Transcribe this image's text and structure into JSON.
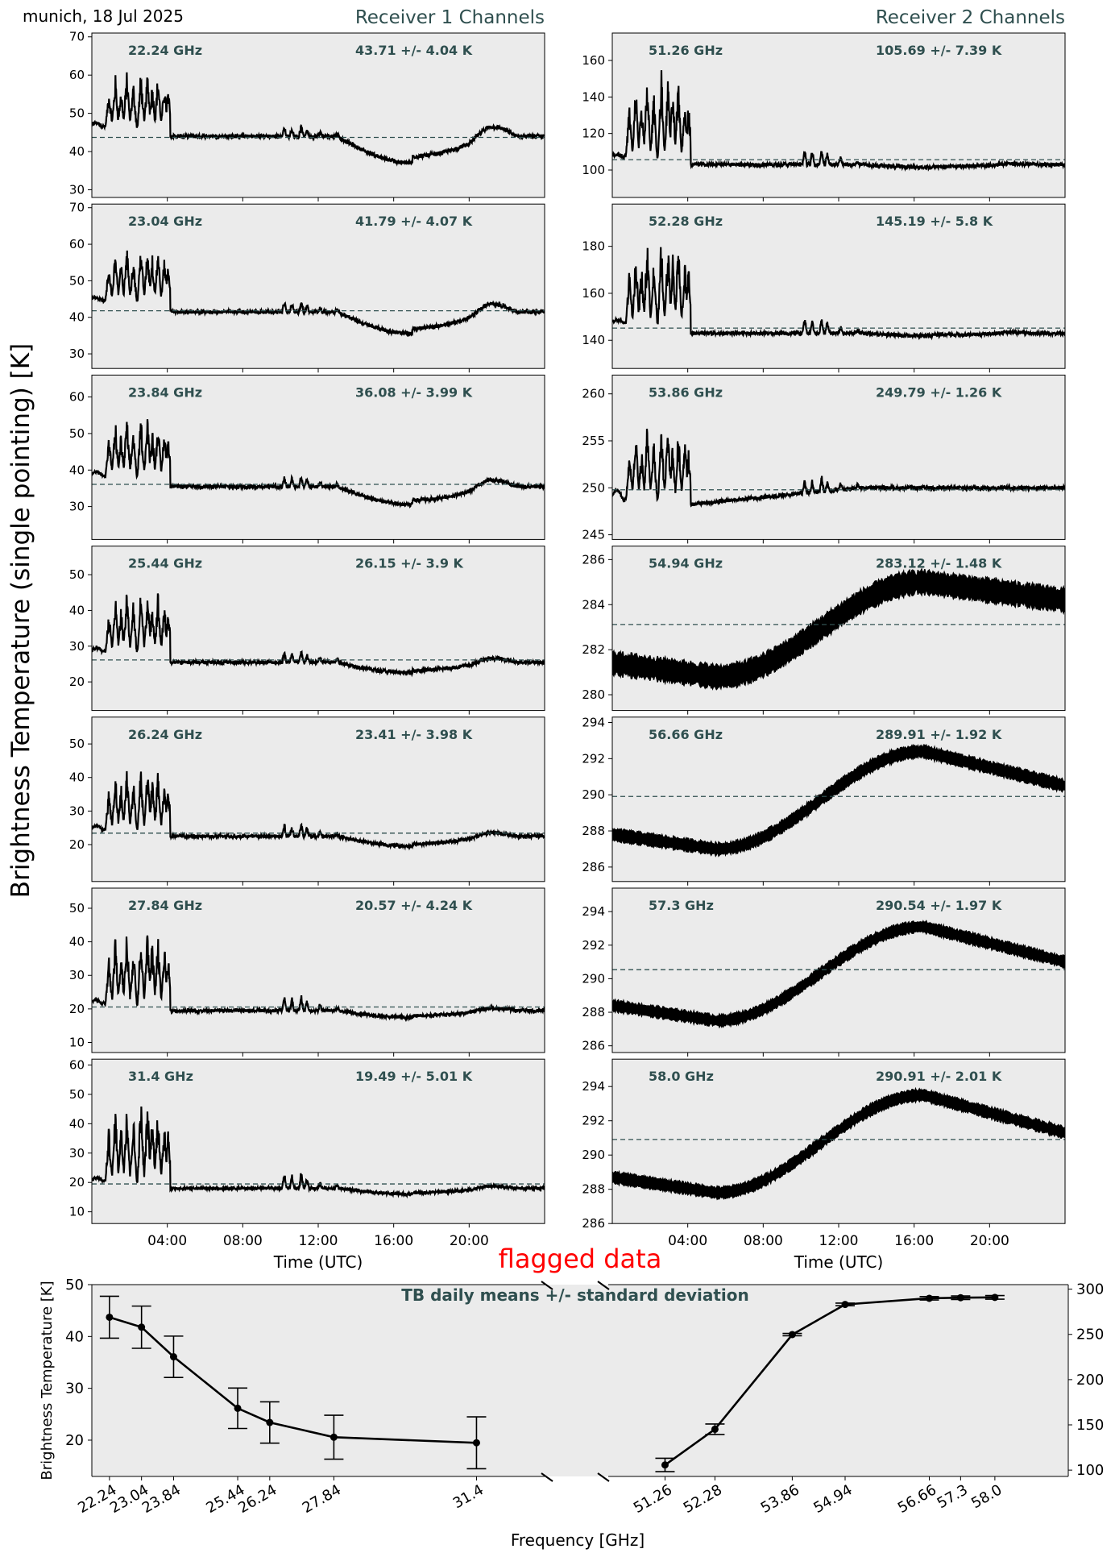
{
  "header": {
    "date": "munich, 18 Jul 2025",
    "receiver1_title": "Receiver 1 Channels",
    "receiver2_title": "Receiver 2 Channels",
    "ylabel": "Brightness Temperature (single pointing) [K]",
    "xlabel_time": "Time (UTC)",
    "flagged_label": "flagged data",
    "time_ticks": [
      "04:00",
      "08:00",
      "12:00",
      "16:00",
      "20:00"
    ]
  },
  "colors": {
    "panel_bg": "#ebebeb",
    "trace": "#000000",
    "mean_line": "#2f4f4f",
    "annotation": "#2f4f4f",
    "flagged": "#ff0000"
  },
  "chart_data": [
    {
      "type": "line",
      "title": "Receiver 1 Channels",
      "xlabel": "Time (UTC)",
      "ylabel": "Brightness Temperature (single pointing) [K]",
      "x_unit": "hours UTC",
      "xlim": [
        0,
        24
      ],
      "panels": [
        {
          "freq_label": "22.24 GHz",
          "stat_label": "43.71 +/- 4.04 K",
          "mean": 43.71,
          "std": 4.04,
          "ylim": [
            28,
            71
          ],
          "yticks": [
            30,
            40,
            50,
            60,
            70
          ],
          "base_pre": 47,
          "base_post": 44,
          "burst_amp": 15,
          "low_dip": 7,
          "late_bump": 0,
          "noise": 1.0
        },
        {
          "freq_label": "23.04 GHz",
          "stat_label": "41.79 +/- 4.07 K",
          "mean": 41.79,
          "std": 4.07,
          "ylim": [
            26,
            71
          ],
          "yticks": [
            30,
            40,
            50,
            60,
            70
          ],
          "base_pre": 45,
          "base_post": 41.5,
          "burst_amp": 16,
          "low_dip": 6,
          "late_bump": 0,
          "noise": 1.0
        },
        {
          "freq_label": "23.84 GHz",
          "stat_label": "36.08 +/- 3.99 K",
          "mean": 36.08,
          "std": 3.99,
          "ylim": [
            21,
            66
          ],
          "yticks": [
            30,
            40,
            50,
            60
          ],
          "base_pre": 39,
          "base_post": 35.5,
          "burst_amp": 17,
          "low_dip": 5,
          "late_bump": 0,
          "noise": 1.0
        },
        {
          "freq_label": "25.44 GHz",
          "stat_label": "26.15 +/- 3.9 K",
          "mean": 26.15,
          "std": 3.9,
          "ylim": [
            12,
            58
          ],
          "yticks": [
            20,
            30,
            40,
            50
          ],
          "base_pre": 29,
          "base_post": 25.5,
          "burst_amp": 18,
          "low_dip": 3,
          "late_bump": 0,
          "noise": 1.0
        },
        {
          "freq_label": "26.24 GHz",
          "stat_label": "23.41 +/- 3.98 K",
          "mean": 23.41,
          "std": 3.98,
          "ylim": [
            9,
            58
          ],
          "yticks": [
            20,
            30,
            40,
            50
          ],
          "base_pre": 25,
          "base_post": 22.5,
          "burst_amp": 20,
          "low_dip": 3,
          "late_bump": 0,
          "noise": 1.0
        },
        {
          "freq_label": "27.84 GHz",
          "stat_label": "20.57 +/- 4.24 K",
          "mean": 20.57,
          "std": 4.24,
          "ylim": [
            7,
            56
          ],
          "yticks": [
            10,
            20,
            30,
            40,
            50
          ],
          "base_pre": 22,
          "base_post": 19.5,
          "burst_amp": 24,
          "low_dip": 2,
          "late_bump": 0,
          "noise": 1.0
        },
        {
          "freq_label": "31.4 GHz",
          "stat_label": "19.49 +/- 5.01 K",
          "mean": 19.49,
          "std": 5.01,
          "ylim": [
            6,
            62
          ],
          "yticks": [
            10,
            20,
            30,
            40,
            50,
            60
          ],
          "base_pre": 21,
          "base_post": 18,
          "burst_amp": 30,
          "low_dip": 2,
          "late_bump": 0,
          "noise": 1.0
        }
      ]
    },
    {
      "type": "line",
      "title": "Receiver 2 Channels",
      "xlabel": "Time (UTC)",
      "ylabel": "Brightness Temperature (single pointing) [K]",
      "x_unit": "hours UTC",
      "xlim": [
        0,
        24
      ],
      "panels": [
        {
          "freq_label": "51.26 GHz",
          "stat_label": "105.69 +/- 7.39 K",
          "mean": 105.69,
          "std": 7.39,
          "ylim": [
            85,
            175
          ],
          "yticks": [
            100,
            120,
            140,
            160
          ],
          "base_pre": 108,
          "base_post": 103,
          "burst_amp": 48,
          "low_dip": 1.5,
          "late_bump": 0,
          "noise": 2.0
        },
        {
          "freq_label": "52.28 GHz",
          "stat_label": "145.19 +/- 5.8 K",
          "mean": 145.19,
          "std": 5.8,
          "ylim": [
            128,
            198
          ],
          "yticks": [
            140,
            160,
            180
          ],
          "base_pre": 148,
          "base_post": 143,
          "burst_amp": 38,
          "low_dip": 1,
          "late_bump": 0,
          "noise": 1.5
        },
        {
          "freq_label": "53.86 GHz",
          "stat_label": "249.79 +/- 1.26 K",
          "mean": 249.79,
          "std": 1.26,
          "ylim": [
            244.5,
            262
          ],
          "yticks": [
            245,
            250,
            255,
            260
          ],
          "base_pre": 249.2,
          "base_post": 248.2,
          "burst_amp": 8,
          "low_dip": 0,
          "late_bump": 1.8,
          "noise": 0.4
        },
        {
          "freq_label": "54.94 GHz",
          "stat_label": "283.12 +/- 1.48 K",
          "mean": 283.12,
          "std": 1.48,
          "ylim": [
            279.3,
            286.6
          ],
          "yticks": [
            280,
            282,
            284,
            286
          ],
          "smooth_start": 281.4,
          "smooth_min": 280.8,
          "smooth_peak": 285.0,
          "smooth_end": 284.2,
          "noise": 0.45
        },
        {
          "freq_label": "56.66 GHz",
          "stat_label": "289.91 +/- 1.92 K",
          "mean": 289.91,
          "std": 1.92,
          "ylim": [
            285.2,
            294.3
          ],
          "yticks": [
            286,
            288,
            290,
            292,
            294
          ],
          "smooth_start": 287.8,
          "smooth_min": 287.0,
          "smooth_peak": 292.4,
          "smooth_end": 290.5,
          "noise": 0.3
        },
        {
          "freq_label": "57.3 GHz",
          "stat_label": "290.54 +/- 1.97 K",
          "mean": 290.54,
          "std": 1.97,
          "ylim": [
            285.6,
            295.4
          ],
          "yticks": [
            286,
            288,
            290,
            292,
            294
          ],
          "smooth_start": 288.4,
          "smooth_min": 287.5,
          "smooth_peak": 293.1,
          "smooth_end": 291.0,
          "noise": 0.3
        },
        {
          "freq_label": "58.0 GHz",
          "stat_label": "290.91 +/- 2.01 K",
          "mean": 290.91,
          "std": 2.01,
          "ylim": [
            286.0,
            295.6
          ],
          "yticks": [
            286,
            288,
            290,
            292,
            294
          ],
          "smooth_start": 288.7,
          "smooth_min": 287.8,
          "smooth_peak": 293.5,
          "smooth_end": 291.3,
          "noise": 0.3
        }
      ]
    },
    {
      "type": "line",
      "title": "TB daily means +/- standard deviation",
      "xlabel": "Frequency [GHz]",
      "ylabel": "Brightness Temperature [K]",
      "left_axis": {
        "ylim": [
          13,
          50
        ],
        "yticks": [
          20,
          30,
          40,
          50
        ]
      },
      "right_axis": {
        "ylim": [
          93,
          305
        ],
        "yticks": [
          100,
          150,
          200,
          250,
          300
        ]
      },
      "series": [
        {
          "receiver": 1,
          "x": [
            22.24,
            23.04,
            23.84,
            25.44,
            26.24,
            27.84,
            31.4
          ],
          "x_labels": [
            "22.24",
            "23.04",
            "23.84",
            "25.44",
            "26.24",
            "27.84",
            "31.4"
          ],
          "y": [
            43.71,
            41.79,
            36.08,
            26.15,
            23.41,
            20.57,
            19.49
          ],
          "yerr": [
            4.04,
            4.07,
            3.99,
            3.9,
            3.98,
            4.24,
            5.01
          ]
        },
        {
          "receiver": 2,
          "x": [
            51.26,
            52.28,
            53.86,
            54.94,
            56.66,
            57.3,
            58.0
          ],
          "x_labels": [
            "51.26",
            "52.28",
            "53.86",
            "54.94",
            "56.66",
            "57.3",
            "58.0"
          ],
          "y": [
            105.69,
            145.19,
            249.79,
            283.12,
            289.91,
            290.54,
            290.91
          ],
          "yerr": [
            7.39,
            5.8,
            1.26,
            1.48,
            1.92,
            1.97,
            2.01
          ]
        }
      ]
    }
  ]
}
